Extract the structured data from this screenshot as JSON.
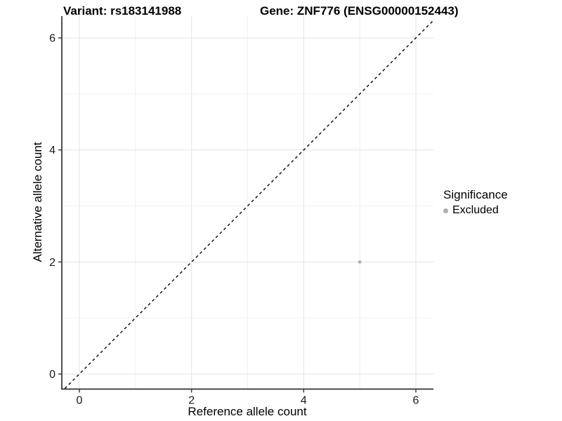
{
  "titles": {
    "variant": "Variant: rs183141988",
    "gene": "Gene: ZNF776 (ENSG00000152443)"
  },
  "legend": {
    "title": "Significance",
    "items": [
      {
        "label": "Excluded",
        "color": "#b0b0b0"
      }
    ]
  },
  "colors": {
    "point": "#b0b0b0",
    "axis": "#333333",
    "grid_major": "#e3e3e3",
    "grid_minor": "#f0f0f0",
    "diagonal": "#000000",
    "tick_text": "#1a1a1a"
  },
  "chart_data": {
    "type": "scatter",
    "title": "Variant: rs183141988 — Gene: ZNF776 (ENSG00000152443)",
    "xlabel": "Reference allele count",
    "ylabel": "Alternative allele count",
    "xlim": [
      -0.31,
      6.31
    ],
    "ylim": [
      -0.26,
      6.39
    ],
    "x_ticks": [
      0,
      2,
      4,
      6
    ],
    "y_ticks": [
      0,
      2,
      4,
      6
    ],
    "grid": true,
    "grid_interval": 1,
    "legend_position": "right",
    "series": [
      {
        "name": "Excluded",
        "color": "#b0b0b0",
        "points": [
          {
            "x": 5,
            "y": 2
          }
        ]
      }
    ],
    "reference_line": {
      "type": "identity",
      "slope": 1,
      "intercept": 0,
      "style": "dashed",
      "color": "#000000"
    }
  }
}
